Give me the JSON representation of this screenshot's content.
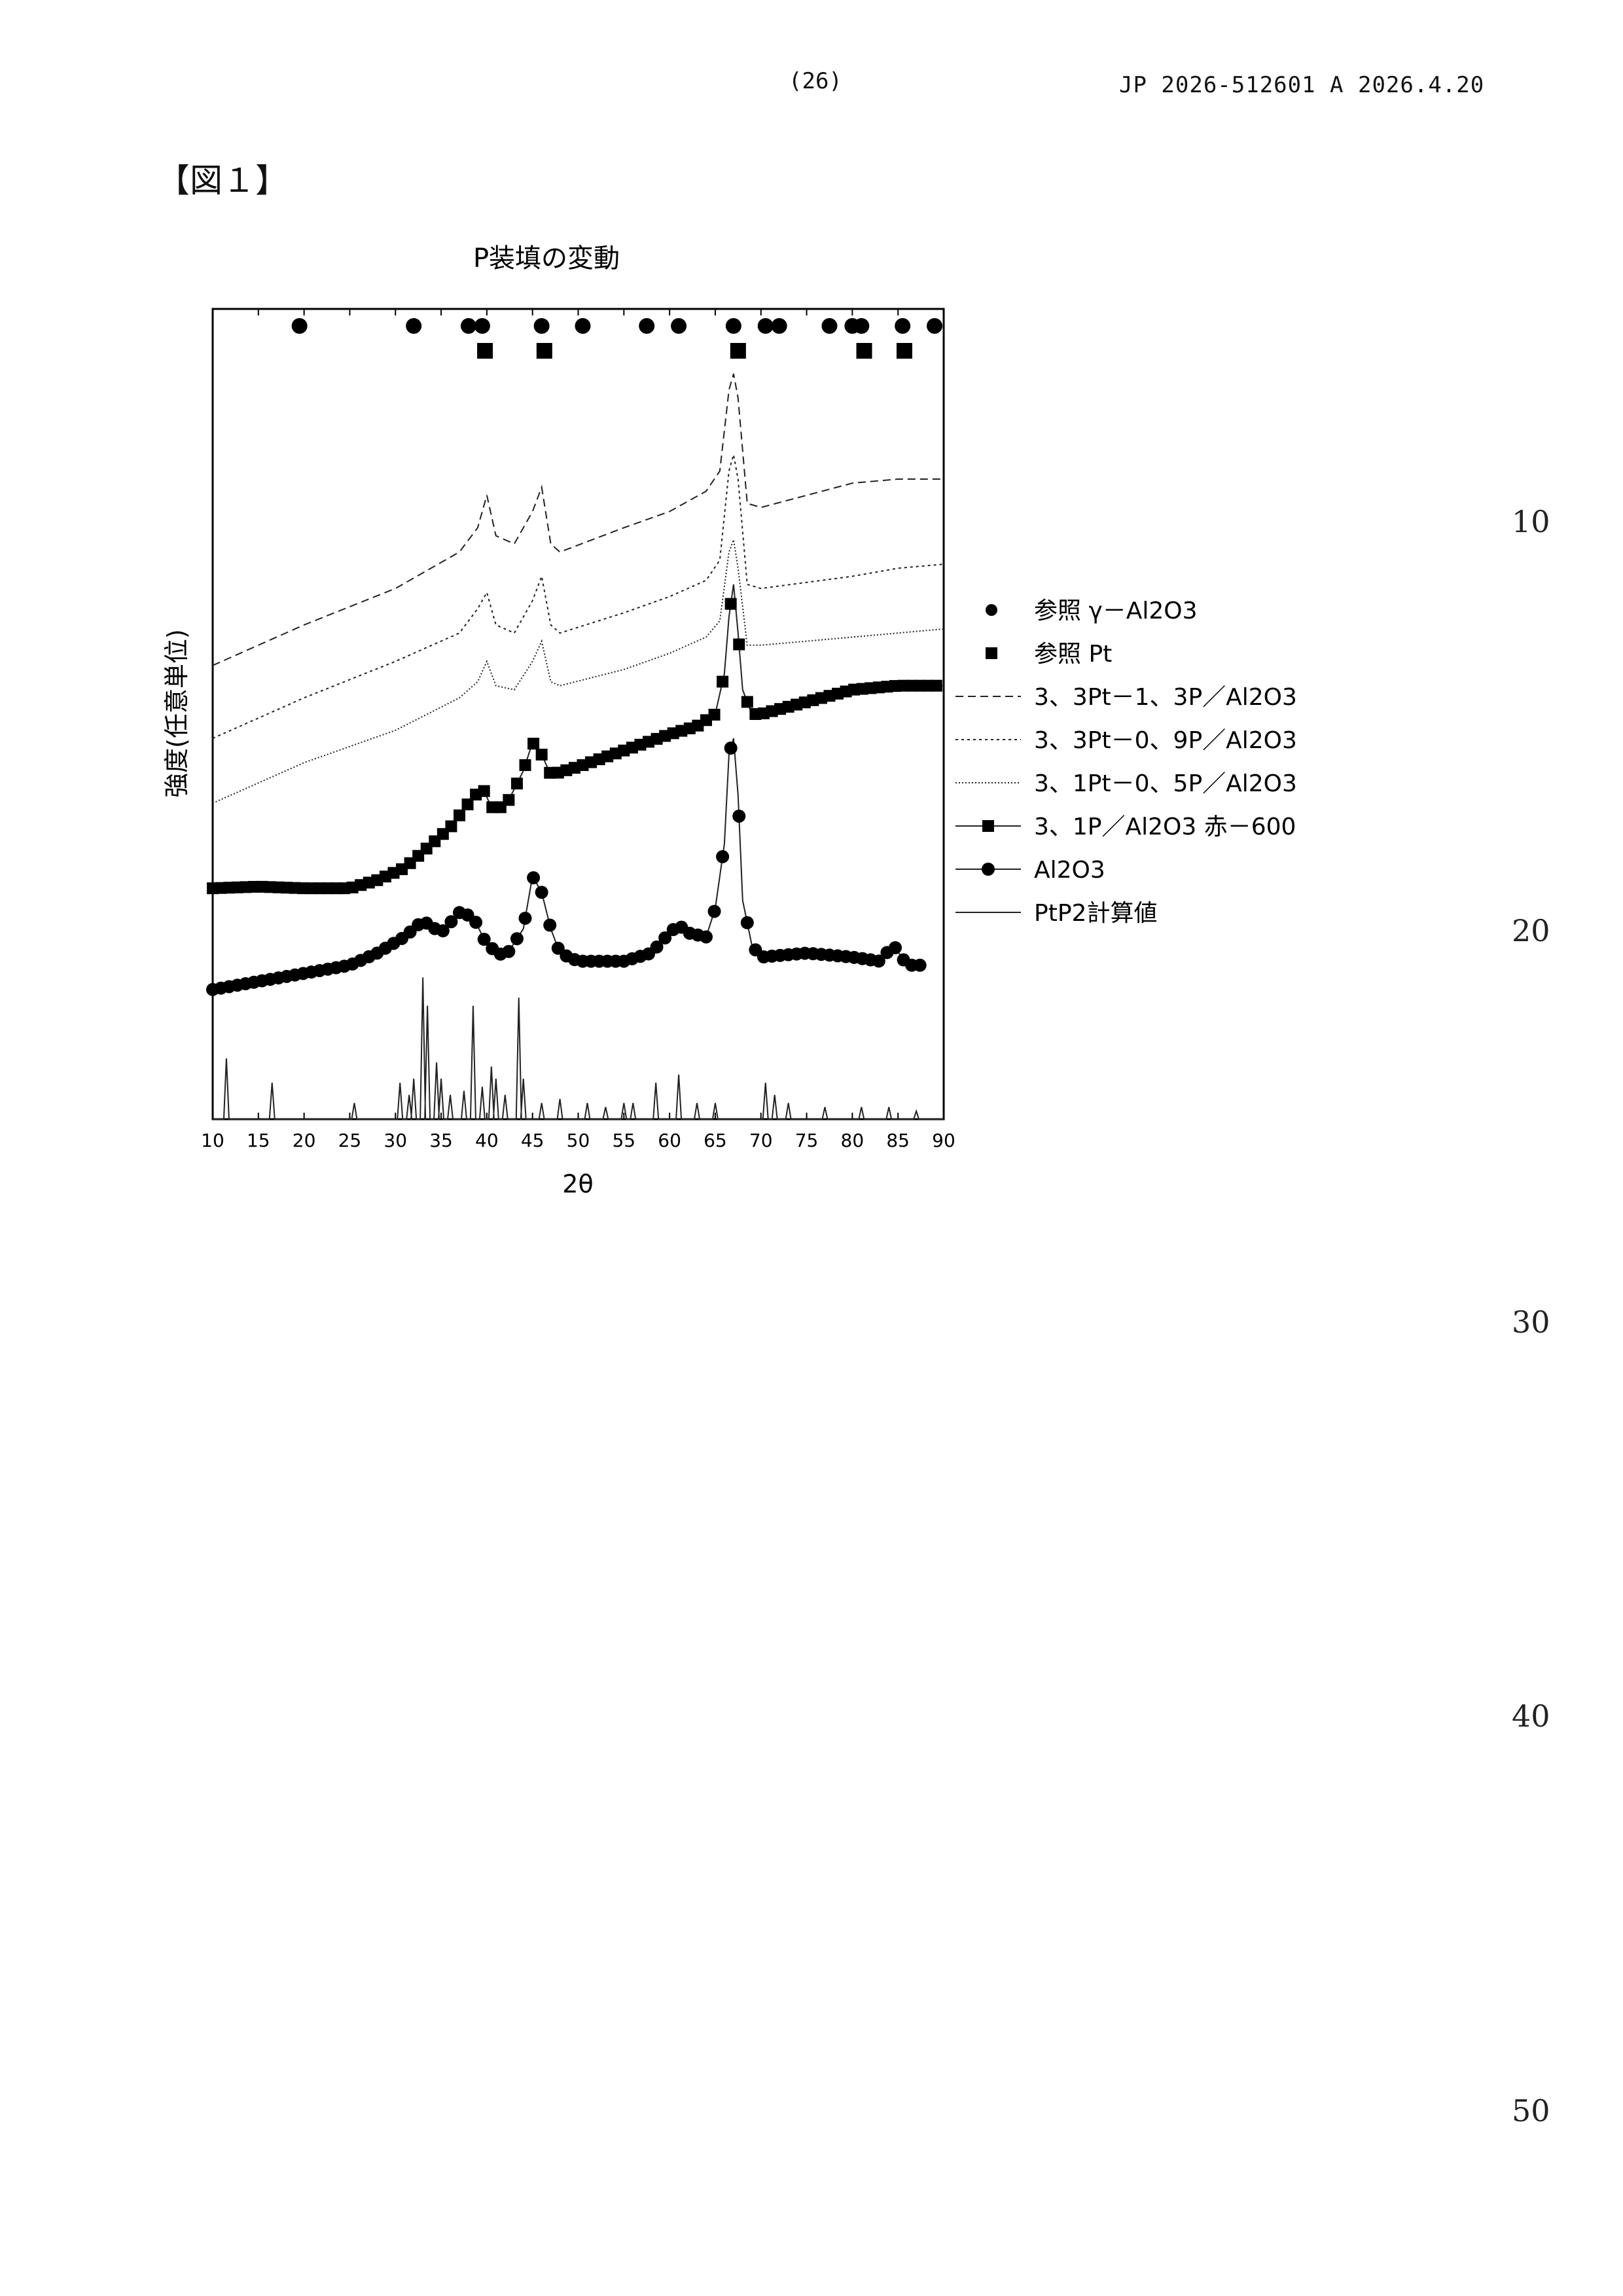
{
  "header": {
    "page_number": "(26)",
    "patent_id": "JP  2026-512601  A  2026.4.20"
  },
  "figure_label": "【図１】",
  "margin_numbers": [
    "10",
    "20",
    "30",
    "40",
    "50"
  ],
  "chart_data": {
    "type": "line",
    "title": "P装填の変動",
    "xlabel": "2θ",
    "ylabel": "強度(任意単位)",
    "xlim": [
      10,
      90
    ],
    "xticks": [
      10,
      15,
      20,
      25,
      30,
      35,
      40,
      45,
      50,
      55,
      60,
      65,
      70,
      75,
      80,
      85,
      90
    ],
    "ylim": [
      0,
      100
    ],
    "grid": false,
    "legend_position": "right",
    "reference_markers": [
      {
        "name": "参照 γ－Al2O3",
        "marker": "circle",
        "x": [
          19.5,
          32,
          38,
          39.5,
          46,
          50.5,
          57.5,
          61,
          67,
          70.5,
          72,
          77.5,
          80,
          81,
          85.5,
          89
        ]
      },
      {
        "name": "参照 Pt",
        "marker": "square",
        "x": [
          39.8,
          46.3,
          67.5,
          81.3,
          85.7
        ]
      }
    ],
    "series": [
      {
        "name": "3、3Pt－1、3P／Al2O3",
        "style": "dashed",
        "x": [
          10,
          20,
          30,
          37,
          39,
          40,
          41,
          43,
          45,
          46,
          47,
          48,
          55,
          60,
          64,
          65.5,
          66.5,
          67,
          67.5,
          68.5,
          70,
          80,
          85,
          90
        ],
        "y": [
          56,
          61,
          65.5,
          70,
          73,
          77,
          72,
          71,
          75,
          78,
          71,
          70,
          73,
          75,
          77.5,
          80,
          90,
          92,
          89,
          76,
          75.5,
          78.5,
          79,
          79
        ]
      },
      {
        "name": "3、3Pt－0、9P／Al2O3",
        "style": "dotted",
        "x": [
          10,
          20,
          30,
          37,
          39,
          40,
          41,
          43,
          45,
          46,
          47,
          48,
          55,
          60,
          64,
          65.5,
          66.5,
          67,
          67.5,
          68.5,
          70,
          80,
          85,
          90
        ],
        "y": [
          47,
          52,
          56.5,
          60,
          63,
          65,
          61,
          60,
          64,
          67,
          61,
          60,
          62.5,
          64.5,
          66.5,
          69,
          80,
          82,
          79,
          66,
          65.5,
          67,
          68,
          68.5
        ]
      },
      {
        "name": "3、1Pt－0、5P／Al2O3",
        "style": "dotted-fine",
        "x": [
          10,
          20,
          30,
          37,
          39,
          40,
          41,
          43,
          45,
          46,
          47,
          48,
          55,
          60,
          64,
          65.5,
          66.5,
          67,
          67.5,
          68.5,
          70,
          80,
          85,
          90
        ],
        "y": [
          39,
          44,
          48,
          52,
          54,
          56.5,
          53.5,
          53,
          56.5,
          59,
          54,
          53.5,
          55.5,
          57.5,
          59.5,
          61.5,
          70,
          71.5,
          68,
          58.5,
          58.5,
          59.5,
          60,
          60.5
        ]
      },
      {
        "name": "3、1P／Al2O3 赤－600",
        "style": "square-markers",
        "x": [
          10,
          15,
          20,
          25,
          28,
          31,
          34,
          36,
          38,
          39.5,
          40.5,
          42,
          44,
          45,
          46,
          47,
          50,
          55,
          60,
          63,
          65,
          66,
          66.5,
          67,
          67.5,
          68,
          69,
          70,
          75,
          80,
          85,
          90
        ],
        "y": [
          28.5,
          28.7,
          28.5,
          28.5,
          29.5,
          31,
          34,
          36,
          39,
          41,
          38.5,
          38.5,
          43,
          46.5,
          45,
          42.5,
          43.5,
          45.5,
          47.5,
          48.5,
          50,
          55,
          62,
          66,
          60,
          53,
          50,
          50,
          51.5,
          53,
          53.5,
          53.5
        ]
      },
      {
        "name": "Al2O3",
        "style": "circle-markers",
        "x": [
          10,
          15,
          20,
          25,
          28,
          31,
          33,
          35,
          37,
          38.5,
          40,
          42,
          44,
          45,
          46,
          47,
          48,
          50,
          55,
          58,
          60,
          61,
          62,
          64,
          65,
          66,
          66.5,
          67,
          67.5,
          68,
          69,
          70,
          75,
          80,
          83,
          84.5,
          86,
          88
        ],
        "y": [
          16,
          17,
          18,
          19,
          20.5,
          22.5,
          24.5,
          23,
          25.5,
          25,
          21.5,
          20,
          23.5,
          30,
          28,
          23.5,
          20.5,
          19.5,
          19.5,
          20.5,
          23,
          24,
          23,
          22.5,
          26,
          34,
          45,
          47,
          40,
          27,
          21.5,
          20,
          20.5,
          20,
          19.5,
          21.5,
          19,
          19
        ]
      },
      {
        "name": "PtP2計算値",
        "style": "thin-solid",
        "peaks": [
          [
            11.5,
            7.5
          ],
          [
            16.5,
            4.5
          ],
          [
            25.5,
            2
          ],
          [
            30.5,
            4.5
          ],
          [
            31.5,
            3
          ],
          [
            32,
            5
          ],
          [
            33,
            17.5
          ],
          [
            33.5,
            14
          ],
          [
            34.5,
            7
          ],
          [
            35,
            5
          ],
          [
            36,
            3
          ],
          [
            37.5,
            3.5
          ],
          [
            38.5,
            14
          ],
          [
            39.5,
            4
          ],
          [
            40.5,
            6.5
          ],
          [
            41,
            5
          ],
          [
            42,
            3
          ],
          [
            43.5,
            15
          ],
          [
            44,
            5
          ],
          [
            46,
            2
          ],
          [
            48,
            2.5
          ],
          [
            51,
            2
          ],
          [
            53,
            1.5
          ],
          [
            55,
            2
          ],
          [
            56,
            2
          ],
          [
            58.5,
            4.5
          ],
          [
            61,
            5.5
          ],
          [
            63,
            2
          ],
          [
            65,
            2
          ],
          [
            70.5,
            4.5
          ],
          [
            71.5,
            3
          ],
          [
            73,
            2
          ],
          [
            77,
            1.5
          ],
          [
            81,
            1.5
          ],
          [
            84,
            1.5
          ],
          [
            87,
            1
          ]
        ]
      }
    ]
  }
}
